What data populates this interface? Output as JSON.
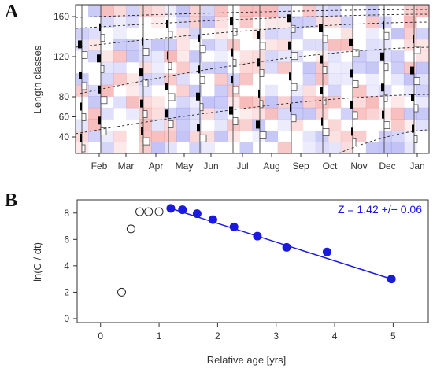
{
  "panel_a": {
    "label": "A",
    "ylabel": "Length classes",
    "y_ticks": [
      40,
      60,
      80,
      120,
      160
    ],
    "months": [
      "Feb",
      "Mar",
      "Apr",
      "May",
      "Jun",
      "Jul",
      "Aug",
      "Sep",
      "Oct",
      "Nov",
      "Dec",
      "Jan"
    ]
  },
  "panel_b": {
    "label": "B",
    "ylabel": "ln(C / dt)",
    "xlabel": "Relative age [yrs]",
    "z_text": "Z = 1.42 +/− 0.06",
    "colors": {
      "fit": "#1a1adf",
      "open_edge": "#222222"
    }
  },
  "chart_data": [
    {
      "type": "heatmap",
      "ylabel": "Length classes",
      "y_ticks": [
        40,
        60,
        80,
        120,
        160
      ],
      "x_categories": [
        "Feb",
        "Mar",
        "Apr",
        "May",
        "Jun",
        "Jul",
        "Aug",
        "Sep",
        "Oct",
        "Nov",
        "Dec",
        "Jan"
      ],
      "grid": false
    },
    {
      "type": "scatter",
      "xlabel": "Relative age [yrs]",
      "ylabel": "ln(C / dt)",
      "xlim": [
        -0.4,
        5.6
      ],
      "ylim": [
        -0.3,
        9.0
      ],
      "x_ticks": [
        0,
        1,
        2,
        3,
        4,
        5
      ],
      "y_ticks": [
        0,
        2,
        4,
        6,
        8
      ],
      "series": [
        {
          "points": [
            [
              0.36,
              2.0
            ],
            [
              0.52,
              6.8
            ],
            [
              0.67,
              8.1
            ],
            [
              0.82,
              8.1
            ],
            [
              1.0,
              8.1
            ]
          ]
        },
        {
          "points": [
            [
              1.2,
              8.35
            ],
            [
              1.4,
              8.25
            ],
            [
              1.65,
              7.95
            ],
            [
              1.92,
              7.5
            ],
            [
              2.28,
              6.95
            ],
            [
              2.68,
              6.25
            ],
            [
              3.18,
              5.4
            ],
            [
              3.87,
              5.05
            ],
            [
              4.97,
              3.0
            ]
          ]
        }
      ],
      "fit_line": {
        "x": [
          1.2,
          4.97
        ],
        "y": [
          8.35,
          3.0
        ]
      },
      "annotation": "Z = 1.42 +/− 0.06"
    }
  ]
}
